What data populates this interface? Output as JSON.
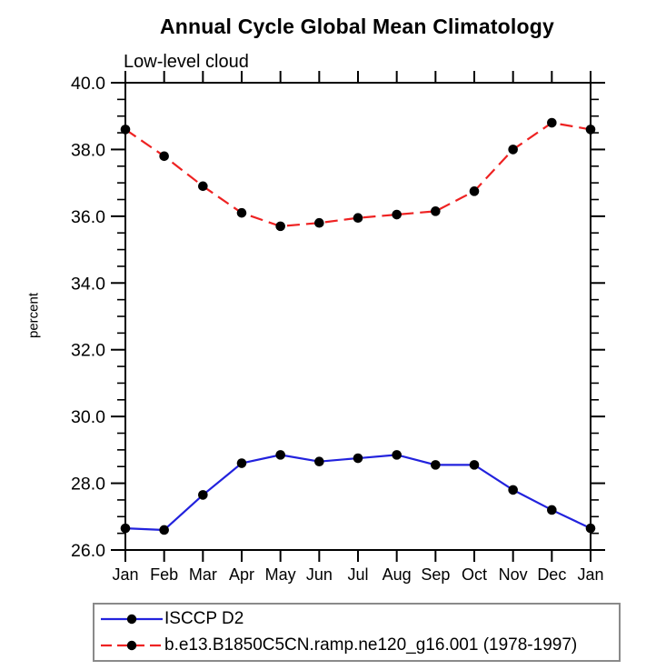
{
  "chart_data": {
    "type": "line",
    "title": "Annual Cycle Global Mean Climatology",
    "subtitle": "Low-level cloud",
    "ylabel": "percent",
    "xlabel": "",
    "categories": [
      "Jan",
      "Feb",
      "Mar",
      "Apr",
      "May",
      "Jun",
      "Jul",
      "Aug",
      "Sep",
      "Oct",
      "Nov",
      "Dec",
      "Jan"
    ],
    "series": [
      {
        "name": "ISCCP D2",
        "color": "#2222dd",
        "line_style": "solid",
        "marker": "circle",
        "marker_color": "#000000",
        "values": [
          26.65,
          26.6,
          27.65,
          28.6,
          28.85,
          28.65,
          28.75,
          28.85,
          28.55,
          28.55,
          27.8,
          27.2,
          26.65
        ]
      },
      {
        "name": "b.e13.B1850C5CN.ramp.ne120_g16.001 (1978-1997)",
        "color": "#ee2222",
        "line_style": "dashed",
        "marker": "circle",
        "marker_color": "#000000",
        "values": [
          38.6,
          37.8,
          36.9,
          36.1,
          35.7,
          35.8,
          35.95,
          36.05,
          36.15,
          36.75,
          38.0,
          38.8,
          38.6
        ]
      }
    ],
    "ylim": [
      26.0,
      40.0
    ],
    "ytick_step": 2.0,
    "yminor_step": 0.5,
    "ytick_labels": [
      "26.0",
      "28.0",
      "30.0",
      "32.0",
      "34.0",
      "36.0",
      "38.0",
      "40.0"
    ],
    "grid": false,
    "legend_position": "bottom",
    "axis_color": "#000000"
  }
}
